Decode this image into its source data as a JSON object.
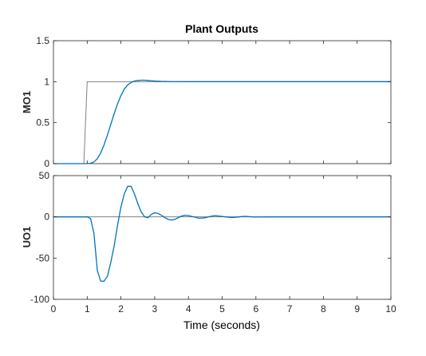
{
  "chart_data": [
    {
      "type": "line",
      "title": "Plant Outputs",
      "xlabel": "",
      "ylabel": "MO1",
      "xlim": [
        0,
        10
      ],
      "ylim": [
        0,
        1.5
      ],
      "xticks": [
        "0",
        "1",
        "2",
        "3",
        "4",
        "5",
        "6",
        "7",
        "8",
        "9",
        "10"
      ],
      "xticks_labeled": false,
      "yticks": [
        "0",
        "0.5",
        "1",
        "1.5"
      ],
      "grid": false,
      "series": [
        {
          "color": "#808080",
          "x": [
            0,
            0.9,
            1.0,
            10
          ],
          "y": [
            0,
            0,
            1,
            1
          ]
        },
        {
          "color": "#0072BD",
          "x": [
            0,
            1.0,
            1.1,
            1.2,
            1.3,
            1.4,
            1.5,
            1.6,
            1.7,
            1.8,
            1.9,
            2.0,
            2.1,
            2.2,
            2.3,
            2.4,
            2.5,
            2.6,
            2.7,
            2.8,
            2.9,
            3.0,
            3.2,
            3.5,
            4.0,
            5.0,
            6.0,
            8.0,
            10.0
          ],
          "y": [
            0,
            0,
            0.005,
            0.02,
            0.06,
            0.13,
            0.23,
            0.35,
            0.48,
            0.61,
            0.73,
            0.83,
            0.91,
            0.96,
            0.99,
            1.008,
            1.015,
            1.018,
            1.018,
            1.015,
            1.012,
            1.008,
            1.004,
            1.001,
            1.0,
            1.0,
            1.0,
            1.0,
            1.0
          ]
        }
      ]
    },
    {
      "type": "line",
      "title": "",
      "xlabel": "Time (seconds)",
      "ylabel": "UO1",
      "xlim": [
        0,
        10
      ],
      "ylim": [
        -100,
        50
      ],
      "xticks": [
        "0",
        "1",
        "2",
        "3",
        "4",
        "5",
        "6",
        "7",
        "8",
        "9",
        "10"
      ],
      "xticks_labeled": true,
      "yticks": [
        "-100",
        "-50",
        "0",
        "50"
      ],
      "grid": false,
      "series": [
        {
          "color": "#808080",
          "x": [
            0,
            10
          ],
          "y": [
            0,
            0
          ]
        },
        {
          "color": "#0072BD",
          "x": [
            0,
            1.0,
            1.1,
            1.2,
            1.3,
            1.4,
            1.5,
            1.6,
            1.7,
            1.8,
            1.9,
            2.0,
            2.1,
            2.2,
            2.3,
            2.4,
            2.5,
            2.6,
            2.7,
            2.8,
            2.9,
            3.0,
            3.1,
            3.2,
            3.3,
            3.4,
            3.5,
            3.6,
            3.7,
            3.8,
            3.9,
            4.0,
            4.1,
            4.2,
            4.3,
            4.4,
            4.5,
            4.6,
            4.7,
            4.8,
            4.9,
            5.0,
            5.1,
            5.2,
            5.3,
            5.4,
            5.5,
            5.6,
            5.7,
            5.8,
            5.9,
            6.0,
            6.5,
            7.0,
            8.0,
            9.0,
            10.0
          ],
          "y": [
            0,
            0,
            -2,
            -20,
            -65,
            -78,
            -78,
            -72,
            -55,
            -35,
            -10,
            12,
            28,
            37,
            37,
            28,
            16,
            6,
            0,
            -1,
            3,
            5,
            4,
            2,
            -1,
            -3,
            -4,
            -3,
            -1,
            1,
            2,
            1.5,
            0.5,
            -0.5,
            -1.5,
            -1.5,
            -1,
            0,
            1,
            1.5,
            1,
            0.5,
            0,
            -0.5,
            -0.8,
            -0.5,
            0,
            0.5,
            0.6,
            0.3,
            0,
            -0.2,
            0,
            0,
            0,
            0,
            0
          ]
        }
      ]
    }
  ]
}
